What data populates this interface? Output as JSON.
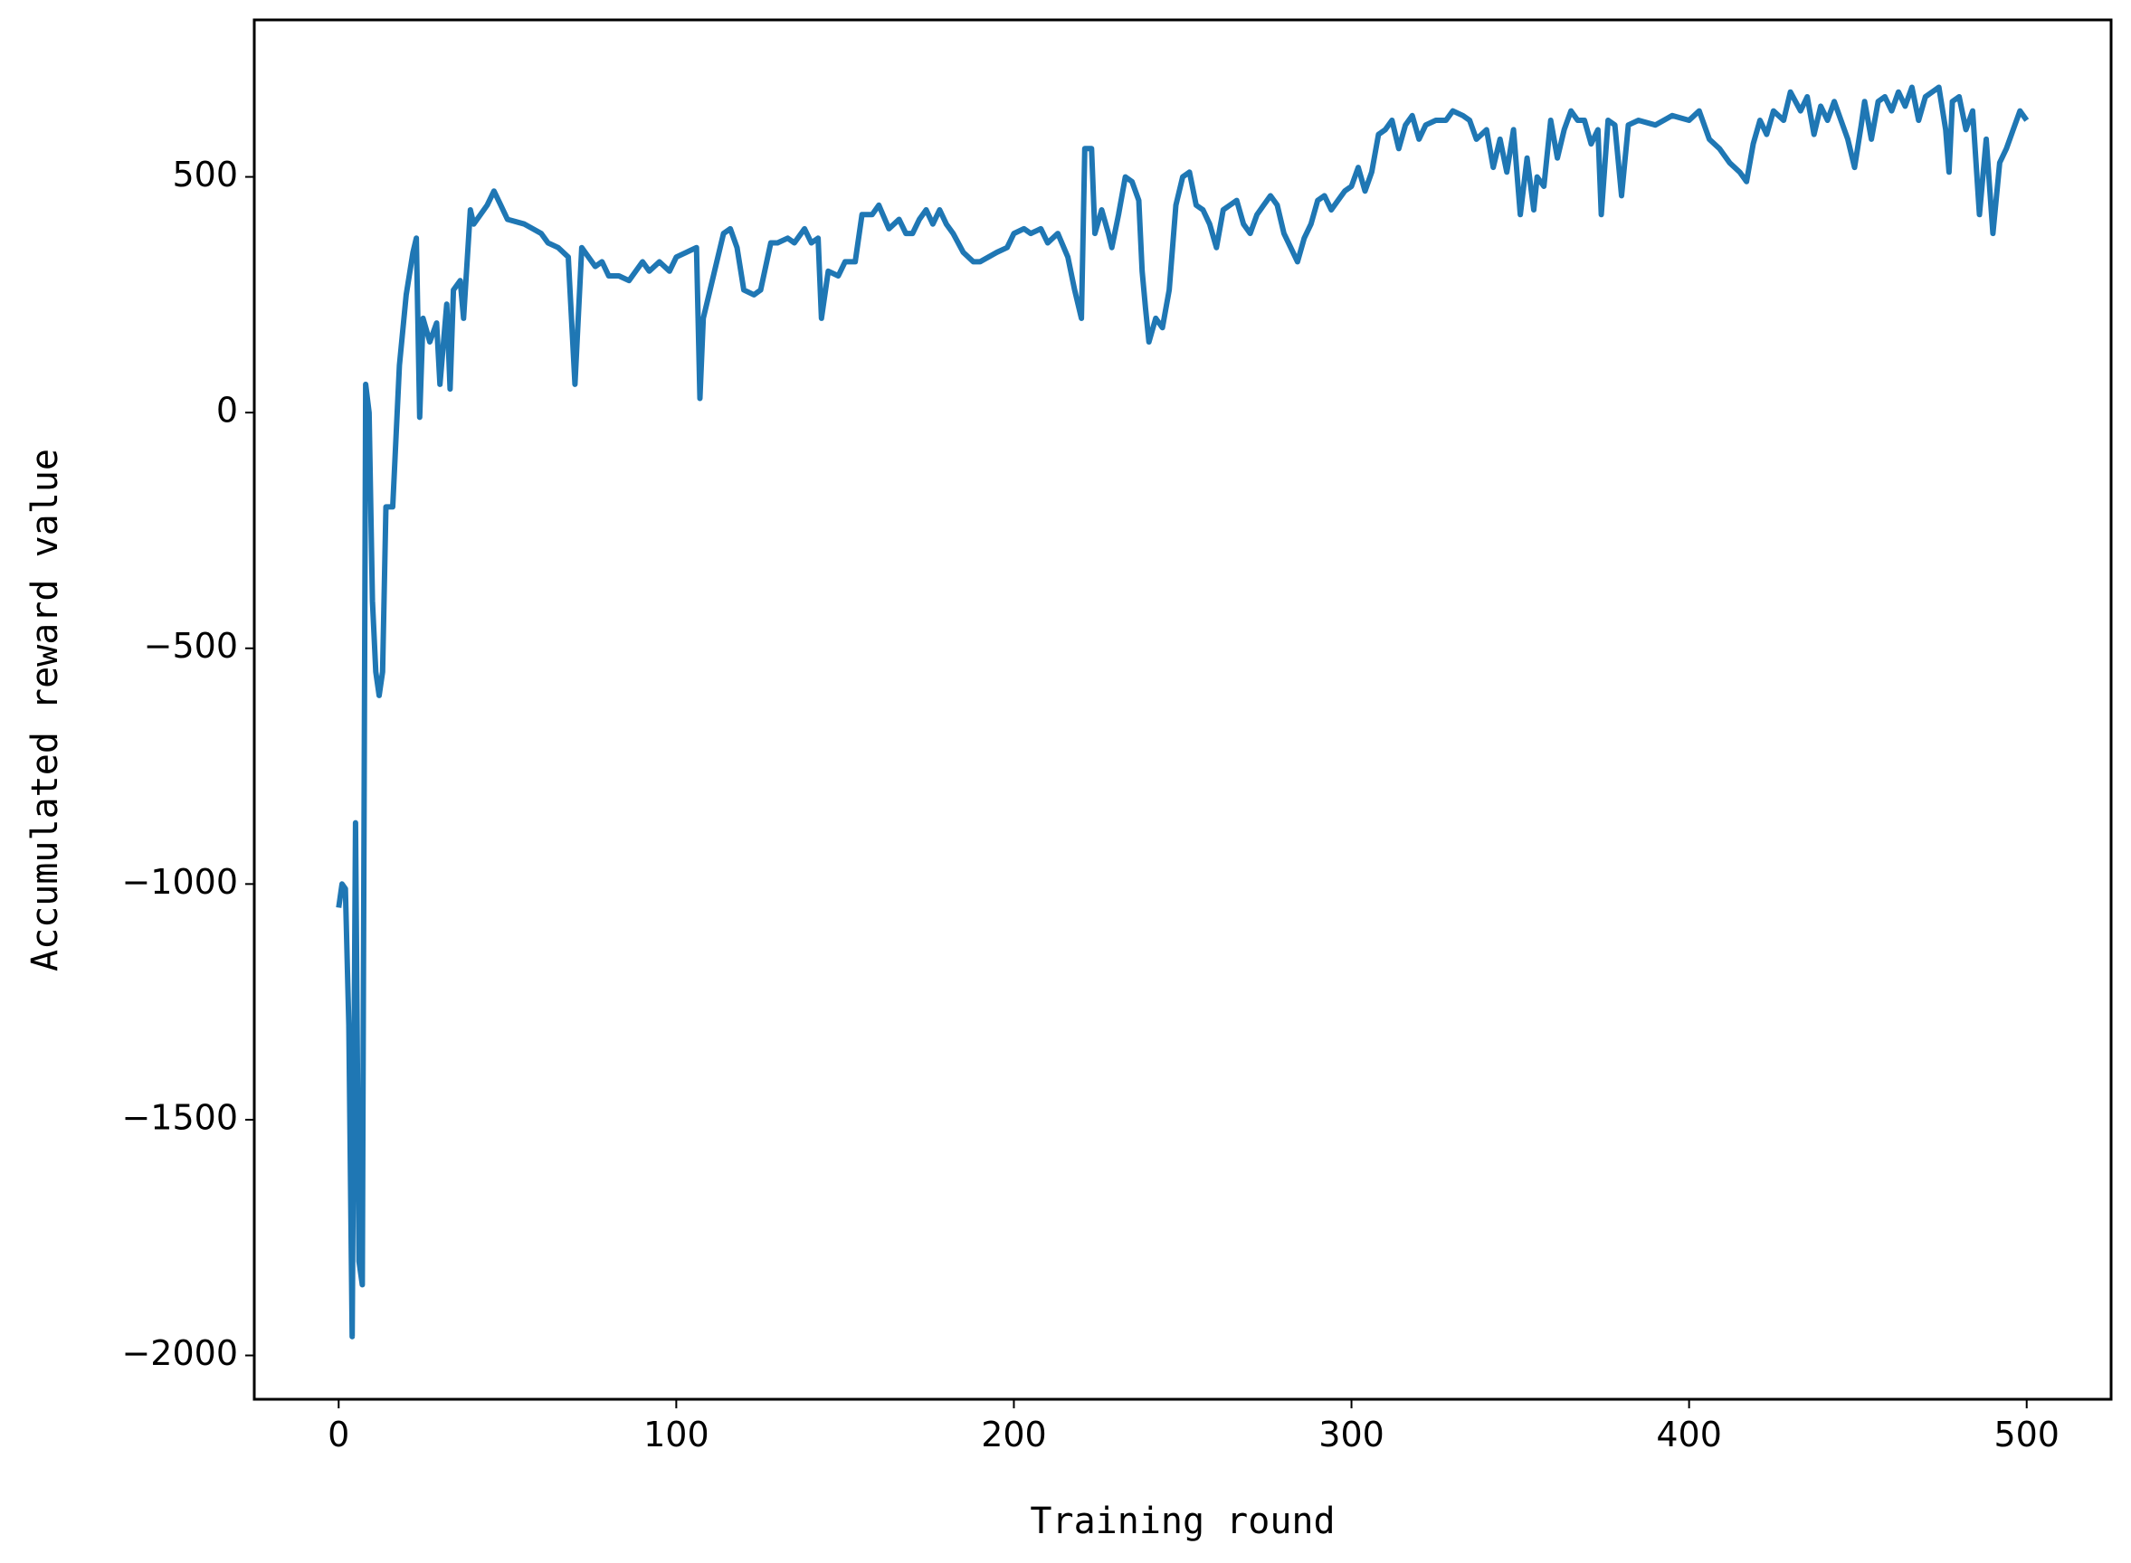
{
  "chart_data": {
    "type": "line",
    "x_label": "Training round",
    "y_label": "Accumulated reward value",
    "color": "#1f77b4",
    "xlim": [
      -25,
      525
    ],
    "ylim": [
      -2093,
      833
    ],
    "xticks": [
      0,
      100,
      200,
      300,
      400,
      500
    ],
    "yticks": [
      {
        "value": -2000,
        "label": "−2000"
      },
      {
        "value": -1500,
        "label": "−1500"
      },
      {
        "value": -1000,
        "label": "−1000"
      },
      {
        "value": -500,
        "label": "−500"
      },
      0,
      500
    ],
    "x": [
      0,
      1,
      2,
      3,
      4,
      5,
      6,
      7,
      8,
      9,
      10,
      11,
      12,
      13,
      14,
      16,
      18,
      20,
      22,
      23,
      24,
      25,
      27,
      29,
      30,
      32,
      33,
      34,
      36,
      37,
      39,
      40,
      42,
      44,
      46,
      48,
      50,
      55,
      60,
      62,
      65,
      68,
      70,
      72,
      74,
      76,
      78,
      80,
      83,
      86,
      90,
      92,
      95,
      98,
      100,
      103,
      106,
      107,
      108,
      110,
      112,
      114,
      116,
      118,
      120,
      123,
      125,
      128,
      130,
      133,
      135,
      138,
      140,
      142,
      143,
      145,
      148,
      150,
      153,
      155,
      158,
      160,
      163,
      166,
      168,
      170,
      172,
      174,
      176,
      178,
      180,
      182,
      185,
      188,
      190,
      195,
      198,
      200,
      203,
      205,
      208,
      210,
      213,
      216,
      218,
      220,
      221,
      223,
      224,
      226,
      228,
      229,
      231,
      233,
      235,
      237,
      238,
      239,
      240,
      242,
      244,
      246,
      248,
      250,
      252,
      254,
      256,
      258,
      260,
      262,
      264,
      266,
      268,
      270,
      272,
      274,
      276,
      278,
      280,
      282,
      284,
      286,
      288,
      290,
      292,
      294,
      296,
      298,
      300,
      302,
      304,
      306,
      308,
      310,
      312,
      314,
      316,
      318,
      320,
      322,
      325,
      328,
      330,
      333,
      335,
      337,
      340,
      342,
      344,
      346,
      348,
      350,
      352,
      354,
      355,
      357,
      359,
      361,
      363,
      365,
      367,
      369,
      371,
      373,
      374,
      376,
      378,
      380,
      382,
      385,
      390,
      395,
      400,
      403,
      406,
      409,
      412,
      415,
      417,
      419,
      421,
      423,
      425,
      428,
      430,
      433,
      435,
      437,
      439,
      441,
      443,
      445,
      447,
      449,
      451,
      452,
      454,
      456,
      458,
      460,
      462,
      464,
      466,
      468,
      470,
      472,
      474,
      476,
      477,
      478,
      480,
      482,
      484,
      486,
      488,
      490,
      492,
      494,
      496,
      498,
      500
    ],
    "values": [
      -1050,
      -1000,
      -1010,
      -1300,
      -1960,
      -870,
      -1800,
      -1850,
      60,
      0,
      -400,
      -550,
      -600,
      -550,
      -200,
      -200,
      100,
      250,
      340,
      370,
      -10,
      200,
      150,
      190,
      60,
      230,
      50,
      260,
      280,
      200,
      430,
      400,
      420,
      440,
      470,
      440,
      410,
      400,
      380,
      360,
      350,
      330,
      60,
      350,
      330,
      310,
      320,
      290,
      290,
      280,
      320,
      300,
      320,
      300,
      330,
      340,
      350,
      30,
      200,
      260,
      320,
      380,
      390,
      350,
      260,
      250,
      260,
      360,
      360,
      370,
      360,
      390,
      360,
      370,
      200,
      300,
      290,
      320,
      320,
      420,
      420,
      440,
      390,
      410,
      380,
      380,
      410,
      430,
      400,
      430,
      400,
      380,
      340,
      320,
      320,
      340,
      350,
      380,
      390,
      380,
      390,
      360,
      380,
      330,
      260,
      200,
      560,
      560,
      380,
      430,
      380,
      350,
      420,
      500,
      490,
      450,
      300,
      220,
      150,
      200,
      180,
      260,
      440,
      500,
      510,
      440,
      430,
      400,
      350,
      430,
      440,
      450,
      400,
      380,
      420,
      440,
      460,
      440,
      380,
      350,
      320,
      370,
      400,
      450,
      460,
      430,
      450,
      470,
      480,
      520,
      470,
      510,
      590,
      600,
      620,
      560,
      610,
      630,
      580,
      610,
      620,
      620,
      640,
      630,
      620,
      580,
      600,
      520,
      580,
      510,
      600,
      420,
      540,
      430,
      500,
      480,
      620,
      540,
      600,
      640,
      620,
      620,
      570,
      600,
      420,
      620,
      610,
      460,
      610,
      620,
      610,
      630,
      620,
      640,
      580,
      560,
      530,
      510,
      490,
      570,
      620,
      590,
      640,
      620,
      680,
      640,
      670,
      590,
      650,
      620,
      660,
      620,
      580,
      520,
      610,
      660,
      580,
      660,
      670,
      640,
      680,
      650,
      690,
      620,
      670,
      680,
      690,
      600,
      510,
      660,
      670,
      600,
      640,
      420,
      580,
      380,
      530,
      560,
      600,
      640,
      620
    ]
  }
}
